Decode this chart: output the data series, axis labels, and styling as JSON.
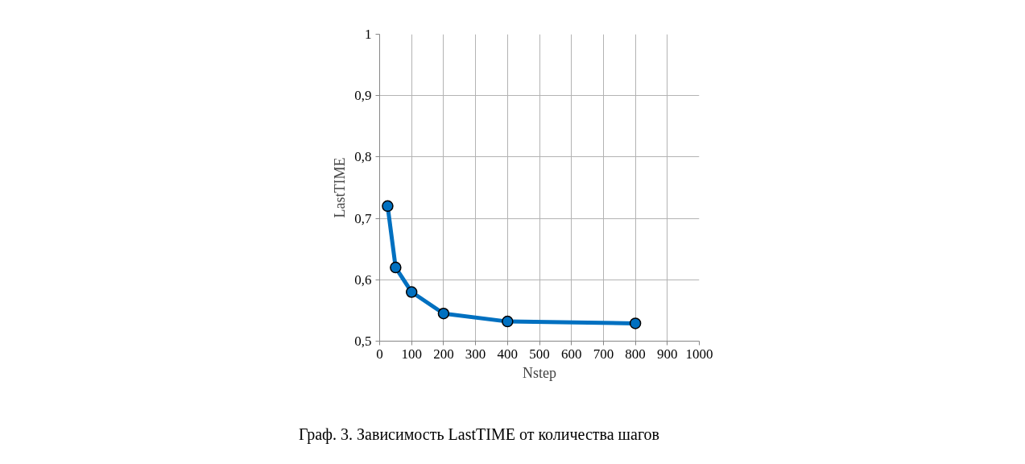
{
  "chart_data": {
    "type": "line",
    "xlabel": "Nstep",
    "ylabel": "LastTIME",
    "x": [
      25,
      50,
      100,
      200,
      400,
      800
    ],
    "series": [
      {
        "color": "#0070c0",
        "values": [
          0.72,
          0.62,
          0.58,
          0.545,
          0.532,
          0.529
        ]
      }
    ],
    "xlim": [
      0,
      1000
    ],
    "xticks": [
      0,
      100,
      200,
      300,
      400,
      500,
      600,
      700,
      800,
      900,
      1000
    ],
    "ylim": [
      0.5,
      1
    ],
    "yticks": [
      {
        "value": 0.5,
        "label": "0,5"
      },
      {
        "value": 0.6,
        "label": "0,6"
      },
      {
        "value": 0.7,
        "label": "0,7"
      },
      {
        "value": 0.8,
        "label": "0,8"
      },
      {
        "value": 0.9,
        "label": "0,9"
      },
      {
        "value": 1,
        "label": "1"
      }
    ],
    "grid": true,
    "marker": "circle",
    "line_style": "solid",
    "annotations": [
      "Граф. 3. Зависимость LastTIME от количества шагов"
    ]
  }
}
